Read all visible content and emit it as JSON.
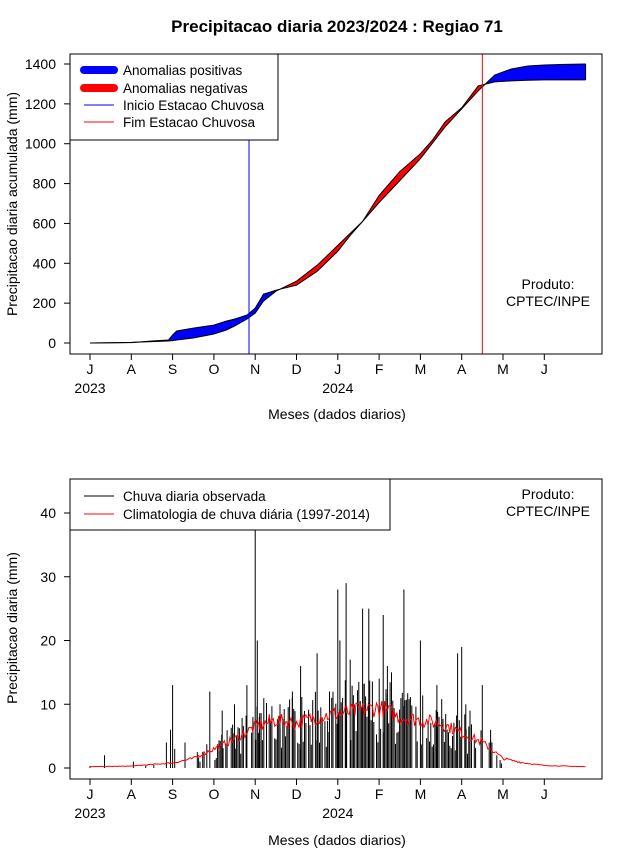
{
  "chart_data": [
    {
      "type": "area",
      "title": "Precipitacao diaria 2023/2024 : Regiao 71",
      "xlabel": "Meses (dados diarios)",
      "ylabel": "Precipitacao diaria acumulada (mm)",
      "ylim": [
        0,
        1400
      ],
      "yticks": [
        "0",
        "200",
        "400",
        "600",
        "800",
        "1000",
        "1200",
        "1400"
      ],
      "month_ticks": [
        "J",
        "A",
        "S",
        "O",
        "N",
        "D",
        "J",
        "F",
        "M",
        "A",
        "M",
        "J"
      ],
      "year_labels": [
        "2023",
        "2024"
      ],
      "legend": [
        "Anomalias positivas",
        "Anomalias negativas",
        "Inicio Estacao Chuvosa",
        "Fim Estacao Chuvosa"
      ],
      "legend_position": "top-left",
      "product_label": [
        "Produto:",
        "CPTEC/INPE"
      ],
      "rainy_season_start_month": 3.85,
      "rainy_season_end_month": 9.5,
      "observed_cumulative": {
        "month": [
          0,
          1,
          1.5,
          1.9,
          2.0,
          2.1,
          2.5,
          3.0,
          3.3,
          3.5,
          3.8,
          4.0,
          4.2,
          4.5,
          4.7,
          5.0,
          5.5,
          6.0,
          6.3,
          6.6,
          7.0,
          7.5,
          8.0,
          8.3,
          8.6,
          9.0,
          9.4,
          9.8,
          10.2,
          10.6,
          11.0,
          11.5,
          12.0
        ],
        "mm": [
          0,
          2,
          10,
          15,
          40,
          60,
          75,
          90,
          110,
          120,
          140,
          175,
          245,
          265,
          275,
          290,
          360,
          460,
          540,
          610,
          705,
          815,
          925,
          1005,
          1085,
          1175,
          1265,
          1345,
          1375,
          1390,
          1395,
          1398,
          1400
        ]
      },
      "climatology_cumulative": {
        "month": [
          0,
          1,
          1.5,
          1.9,
          2.0,
          2.1,
          2.5,
          3.0,
          3.3,
          3.5,
          3.8,
          4.0,
          4.2,
          4.5,
          4.7,
          5.0,
          5.5,
          6.0,
          6.3,
          6.6,
          7.0,
          7.5,
          8.0,
          8.3,
          8.6,
          9.0,
          9.4,
          9.8,
          10.2,
          10.6,
          11.0,
          11.5,
          12.0
        ],
        "mm": [
          0,
          3,
          7,
          10,
          12,
          15,
          25,
          45,
          65,
          85,
          120,
          150,
          210,
          260,
          280,
          310,
          390,
          490,
          550,
          610,
          740,
          860,
          950,
          1020,
          1110,
          1180,
          1290,
          1310,
          1315,
          1318,
          1320,
          1320,
          1320
        ]
      },
      "colors": {
        "positive": "#0000ff",
        "negative": "#ff0000",
        "start_line": "#0000ff",
        "end_line": "#ff0000"
      }
    },
    {
      "type": "bar",
      "xlabel": "Meses (dados diarios)",
      "ylabel": "Precipitacao diaria (mm)",
      "ylim": [
        0,
        45
      ],
      "yticks": [
        "0",
        "10",
        "20",
        "30",
        "40"
      ],
      "month_ticks": [
        "J",
        "A",
        "S",
        "O",
        "N",
        "D",
        "J",
        "F",
        "M",
        "A",
        "M",
        "J"
      ],
      "year_labels": [
        "2023",
        "2024"
      ],
      "legend": [
        "Chuva diaria observada",
        "Climatologia de chuva diária (1997-2014)"
      ],
      "legend_position": "top-left",
      "product_label": [
        "Produto:",
        "CPTEC/INPE"
      ],
      "observed_daily_peaks": {
        "month": [
          0.35,
          1.05,
          1.85,
          1.95,
          2.0,
          2.05,
          2.3,
          2.9,
          3.2,
          3.5,
          3.8,
          4.0,
          4.05,
          4.1,
          4.6,
          4.9,
          5.1,
          5.5,
          5.8,
          6.0,
          6.05,
          6.2,
          6.3,
          6.4,
          6.6,
          6.75,
          7.1,
          7.2,
          7.3,
          7.6,
          8.0,
          8.4,
          8.9,
          9.0,
          9.1,
          9.2,
          9.5,
          9.7,
          9.85
        ],
        "mm": [
          2,
          1,
          4,
          6,
          13,
          3,
          4,
          12,
          9,
          10,
          13,
          38,
          20,
          8,
          10,
          12,
          16,
          18,
          12,
          28,
          20,
          29,
          17,
          10,
          25,
          25,
          24,
          16,
          15,
          28,
          20,
          13,
          18,
          19,
          10,
          9,
          13,
          6,
          2
        ]
      },
      "climatology_daily": {
        "month": [
          0,
          1,
          2,
          2.5,
          3,
          3.5,
          4,
          4.5,
          5,
          5.5,
          6,
          6.5,
          7,
          7.5,
          8,
          8.5,
          9,
          9.5,
          10,
          10.5,
          11,
          11.5,
          12
        ],
        "mm": [
          0.2,
          0.3,
          0.8,
          1.5,
          3,
          4.5,
          6.5,
          7.5,
          7,
          8,
          8.5,
          9,
          9.5,
          8,
          7.5,
          7,
          5.5,
          4,
          1.5,
          0.8,
          0.4,
          0.3,
          0.2
        ]
      },
      "colors": {
        "observed": "#000000",
        "climatology": "#ff0000"
      }
    }
  ]
}
